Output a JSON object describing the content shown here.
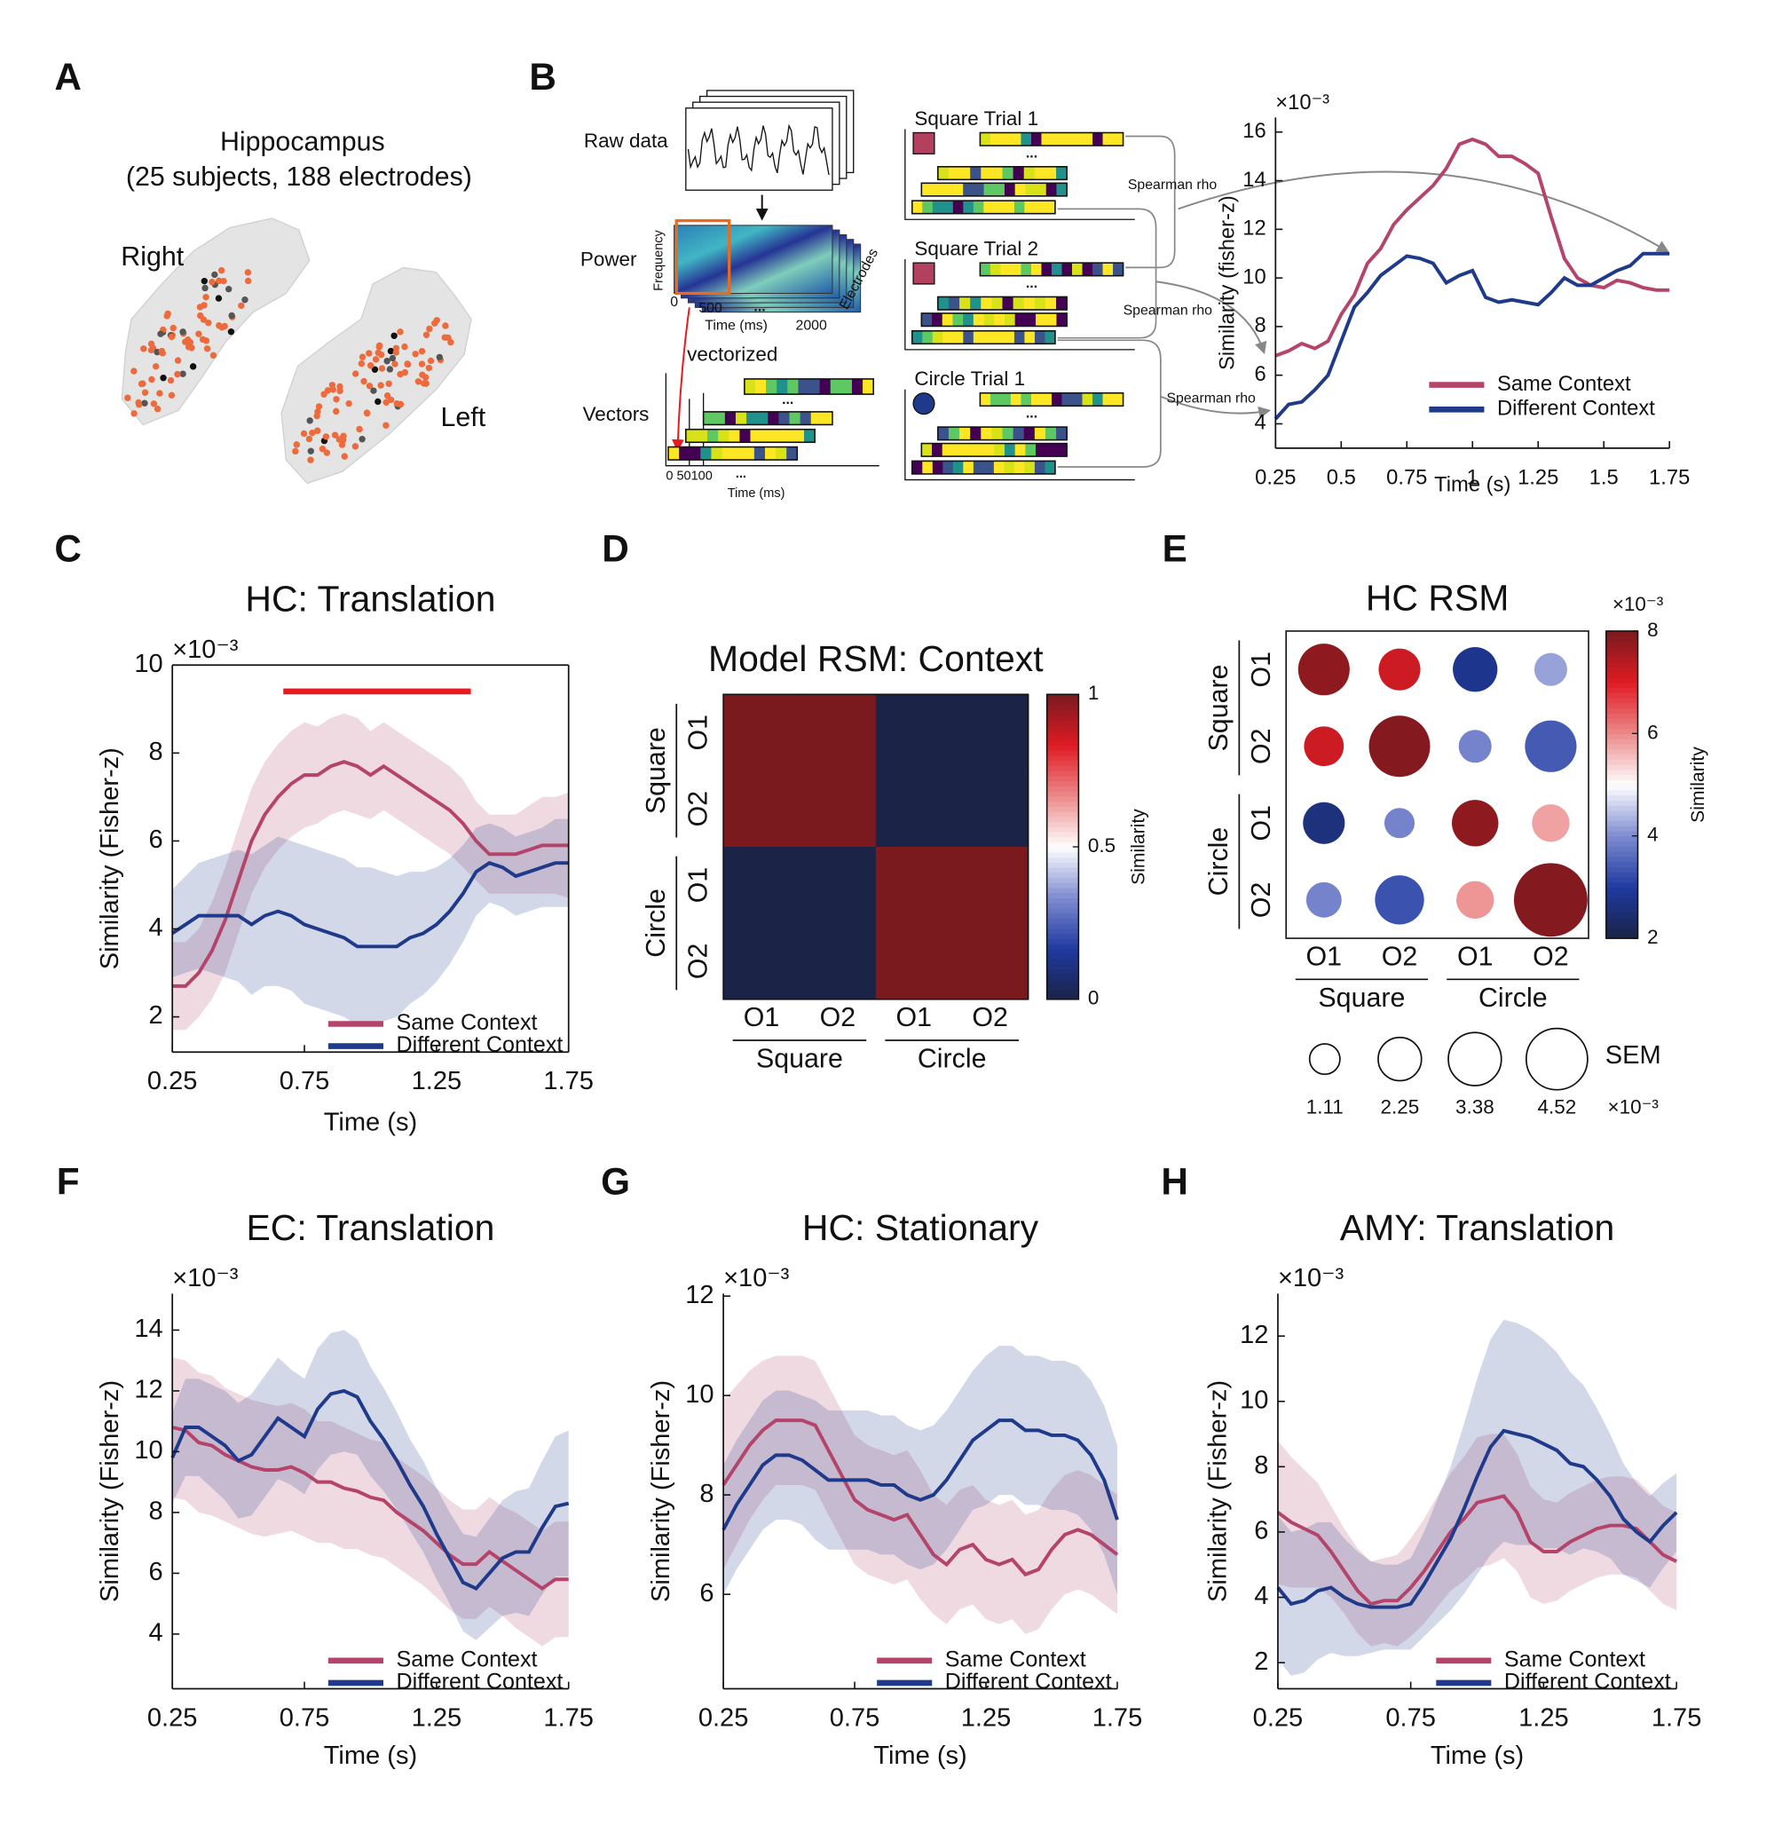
{
  "figure": {
    "panels": [
      "A",
      "B",
      "C",
      "D",
      "E",
      "F",
      "G",
      "H"
    ],
    "panel_a": {
      "title": "Hippocampus",
      "subtitle": "(25 subjects, 188 electrodes)",
      "right": "Right",
      "left": "Left"
    },
    "panel_b": {
      "raw": "Raw data",
      "power": "Power",
      "frequency": "Frequency",
      "power_ticks": [
        "0",
        "500",
        "2000"
      ],
      "time_label": "Time (ms)",
      "electrodes": "Electrodes",
      "vectorized": "vectorized",
      "vectors": "Vectors",
      "vector_ticks": "0 50100",
      "ellipsis": "...",
      "trials": [
        "Square Trial 1",
        "Square Trial 2",
        "Circle Trial 1"
      ],
      "spearman": "Spearman rho"
    }
  },
  "chart_data": [
    {
      "type": "line",
      "x": [
        0.25,
        0.3,
        0.35,
        0.4,
        0.45,
        0.5,
        0.55,
        0.6,
        0.65,
        0.7,
        0.75,
        0.8,
        0.85,
        0.9,
        0.95,
        1.0,
        1.05,
        1.1,
        1.15,
        1.2,
        1.25,
        1.3,
        1.35,
        1.4,
        1.45,
        1.5,
        1.55,
        1.6,
        1.65,
        1.7,
        1.75
      ],
      "xlim": [
        0.25,
        1.75
      ],
      "xticks": [
        0.25,
        0.5,
        0.75,
        1,
        1.25,
        1.5,
        1.75
      ],
      "ylim": [
        3,
        16.6
      ],
      "yticks": [
        4,
        6,
        8,
        10,
        12,
        14,
        16
      ],
      "xlabel": "Time (s)",
      "ylabel": "Similarity (fisher-z)",
      "y_multiplier": "×10⁻³",
      "legend": "lower right",
      "frame": false,
      "series": [
        {
          "name": "Same Context",
          "color": "#b5446a",
          "values": [
            6.8,
            7.0,
            7.3,
            7.1,
            7.4,
            8.5,
            9.3,
            10.6,
            11.2,
            12.2,
            12.8,
            13.3,
            13.8,
            14.5,
            15.5,
            15.7,
            15.5,
            15.0,
            15.0,
            14.7,
            14.3,
            12.5,
            10.8,
            10.0,
            9.7,
            9.6,
            9.9,
            9.8,
            9.6,
            9.5,
            9.5
          ]
        },
        {
          "name": "Different Context",
          "color": "#1f3a8a",
          "values": [
            4.2,
            4.8,
            4.9,
            5.4,
            6.0,
            7.4,
            8.8,
            9.4,
            10.1,
            10.5,
            10.9,
            10.8,
            10.6,
            9.8,
            10.1,
            10.3,
            9.2,
            9.0,
            9.1,
            9.0,
            8.9,
            9.4,
            10.0,
            9.7,
            9.7,
            10.0,
            10.3,
            10.5,
            11.0,
            11.0,
            11.0
          ]
        }
      ]
    },
    {
      "type": "line",
      "title": "HC: Translation",
      "x": [
        0.25,
        0.3,
        0.35,
        0.4,
        0.45,
        0.5,
        0.55,
        0.6,
        0.65,
        0.7,
        0.75,
        0.8,
        0.85,
        0.9,
        0.95,
        1.0,
        1.05,
        1.1,
        1.15,
        1.2,
        1.25,
        1.3,
        1.35,
        1.4,
        1.45,
        1.5,
        1.55,
        1.6,
        1.65,
        1.7,
        1.75
      ],
      "xlim": [
        0.25,
        1.75
      ],
      "xticks": [
        0.25,
        0.75,
        1.25,
        1.75
      ],
      "ylim": [
        1.2,
        10
      ],
      "yticks": [
        2,
        4,
        6,
        8,
        10
      ],
      "xlabel": "Time (s)",
      "ylabel": "Similarity (Fisher-z)",
      "y_multiplier": "×10⁻³",
      "legend": "lower right",
      "frame": true,
      "significance": {
        "x": [
          0.67,
          1.38
        ],
        "y": 9.4,
        "color": "#e8191f"
      },
      "series": [
        {
          "name": "Same Context",
          "color": "#b5446a",
          "values": [
            2.7,
            2.7,
            3.0,
            3.5,
            4.2,
            5.1,
            6.0,
            6.6,
            7.0,
            7.3,
            7.5,
            7.5,
            7.7,
            7.8,
            7.7,
            7.5,
            7.7,
            7.5,
            7.3,
            7.1,
            6.9,
            6.7,
            6.4,
            6.0,
            5.7,
            5.7,
            5.7,
            5.8,
            5.9,
            5.9,
            5.9
          ],
          "errors": [
            1.0,
            1.0,
            1.0,
            1.1,
            1.2,
            1.2,
            1.2,
            1.2,
            1.2,
            1.2,
            1.2,
            1.1,
            1.1,
            1.1,
            1.1,
            1.0,
            1.0,
            1.0,
            1.0,
            1.0,
            1.0,
            1.0,
            1.0,
            0.9,
            0.9,
            0.9,
            0.9,
            1.0,
            1.1,
            1.1,
            1.2
          ]
        },
        {
          "name": "Different Context",
          "color": "#1f3a8a",
          "values": [
            3.9,
            4.1,
            4.3,
            4.3,
            4.3,
            4.3,
            4.1,
            4.3,
            4.4,
            4.3,
            4.1,
            4.0,
            3.9,
            3.8,
            3.6,
            3.6,
            3.6,
            3.6,
            3.8,
            3.9,
            4.1,
            4.4,
            4.8,
            5.3,
            5.5,
            5.4,
            5.2,
            5.3,
            5.4,
            5.5,
            5.5
          ],
          "errors": [
            1.0,
            1.1,
            1.2,
            1.3,
            1.4,
            1.5,
            1.6,
            1.6,
            1.7,
            1.7,
            1.8,
            1.8,
            1.8,
            1.8,
            1.8,
            1.8,
            1.7,
            1.6,
            1.5,
            1.4,
            1.3,
            1.2,
            1.1,
            1.0,
            0.9,
            0.9,
            0.9,
            0.9,
            0.9,
            1.0,
            1.0
          ]
        }
      ]
    },
    {
      "type": "heatmap",
      "title": "Model RSM: Context",
      "row_labels": [
        "O1",
        "O2",
        "O1",
        "O2"
      ],
      "col_labels": [
        "O1",
        "O2",
        "O1",
        "O2"
      ],
      "row_groups": [
        "Square",
        "Circle"
      ],
      "col_groups": [
        "Square",
        "Circle"
      ],
      "values": [
        [
          1,
          1,
          0,
          0
        ],
        [
          1,
          1,
          0,
          0
        ],
        [
          0,
          0,
          1,
          1
        ],
        [
          0,
          0,
          1,
          1
        ]
      ],
      "clim": [
        0,
        1
      ],
      "cticks": [
        0,
        0.5,
        1
      ],
      "clabel": "Similarity",
      "colormap": [
        "#1b2346",
        "#1f3aa0",
        "#7d8bd0",
        "#ffffff",
        "#ec8a8a",
        "#e01b24",
        "#7a1a1f"
      ]
    },
    {
      "type": "bubble_matrix",
      "title": "HC RSM",
      "row_labels": [
        "O1",
        "O2",
        "O1",
        "O2"
      ],
      "col_labels": [
        "O1",
        "O2",
        "O1",
        "O2"
      ],
      "row_groups": [
        "Square",
        "Circle"
      ],
      "col_groups": [
        "Square",
        "Circle"
      ],
      "values": [
        [
          7.8,
          7.2,
          2.8,
          4.2
        ],
        [
          7.2,
          7.9,
          3.9,
          3.4
        ],
        [
          2.6,
          3.9,
          7.8,
          5.8
        ],
        [
          3.9,
          3.3,
          5.9,
          7.9
        ]
      ],
      "sizes": [
        [
          3.2,
          2.1,
          2.4,
          1.3
        ],
        [
          1.9,
          4.5,
          1.3,
          3.2
        ],
        [
          2.1,
          1.1,
          2.6,
          1.7
        ],
        [
          1.5,
          2.9,
          1.7,
          6.5
        ]
      ],
      "clim": [
        2,
        8
      ],
      "cticks": [
        2,
        4,
        6,
        8
      ],
      "clabel": "Similarity",
      "c_multiplier": "×10⁻³",
      "colormap": [
        "#1b2346",
        "#1f3aa0",
        "#7d8bd0",
        "#ffffff",
        "#ec8a8a",
        "#e01b24",
        "#7a1a1f"
      ],
      "size_legend": {
        "title": "SEM",
        "values": [
          1.11,
          2.25,
          3.38,
          4.52
        ],
        "multiplier": "×10⁻³"
      }
    },
    {
      "type": "line",
      "title": "EC: Translation",
      "x": [
        0.25,
        0.3,
        0.35,
        0.4,
        0.45,
        0.5,
        0.55,
        0.6,
        0.65,
        0.7,
        0.75,
        0.8,
        0.85,
        0.9,
        0.95,
        1.0,
        1.05,
        1.1,
        1.15,
        1.2,
        1.25,
        1.3,
        1.35,
        1.4,
        1.45,
        1.5,
        1.55,
        1.6,
        1.65,
        1.7,
        1.75
      ],
      "xlim": [
        0.25,
        1.75
      ],
      "xticks": [
        0.25,
        0.75,
        1.25,
        1.75
      ],
      "ylim": [
        2.2,
        15.2
      ],
      "yticks": [
        4,
        6,
        8,
        10,
        12,
        14
      ],
      "xlabel": "Time (s)",
      "ylabel": "Similarity (Fisher-z)",
      "y_multiplier": "×10⁻³",
      "legend": "lower right",
      "frame": false,
      "series": [
        {
          "name": "Same Context",
          "color": "#b5446a",
          "values": [
            10.8,
            10.7,
            10.3,
            10.2,
            9.9,
            9.7,
            9.5,
            9.4,
            9.4,
            9.5,
            9.3,
            9.0,
            9.0,
            8.8,
            8.7,
            8.5,
            8.4,
            8.0,
            7.7,
            7.4,
            7.0,
            6.6,
            6.3,
            6.3,
            6.7,
            6.4,
            6.1,
            5.8,
            5.5,
            5.8,
            5.8
          ],
          "errors": [
            2.3,
            2.3,
            2.3,
            2.3,
            2.2,
            2.2,
            2.2,
            2.2,
            2.1,
            2.1,
            2.1,
            2.0,
            2.0,
            2.0,
            1.9,
            1.9,
            1.9,
            1.8,
            1.8,
            1.8,
            1.8,
            1.8,
            1.8,
            1.8,
            1.8,
            1.8,
            1.9,
            1.9,
            1.9,
            1.9,
            1.9
          ]
        },
        {
          "name": "Different Context",
          "color": "#1f3a8a",
          "values": [
            9.8,
            10.8,
            10.8,
            10.5,
            10.2,
            9.7,
            9.9,
            10.5,
            11.1,
            10.8,
            10.5,
            11.4,
            11.9,
            12.0,
            11.8,
            11.0,
            10.4,
            9.7,
            8.9,
            8.2,
            7.3,
            6.5,
            5.7,
            5.5,
            6.0,
            6.5,
            6.7,
            6.7,
            7.5,
            8.2,
            8.3
          ],
          "errors": [
            1.5,
            1.6,
            1.6,
            1.7,
            1.8,
            1.9,
            2.0,
            2.0,
            2.0,
            1.9,
            1.9,
            2.0,
            2.0,
            2.0,
            1.9,
            1.8,
            1.7,
            1.6,
            1.5,
            1.5,
            1.5,
            1.5,
            1.6,
            1.7,
            1.8,
            1.9,
            2.0,
            2.1,
            2.2,
            2.3,
            2.4
          ]
        }
      ]
    },
    {
      "type": "line",
      "title": "HC: Stationary",
      "x": [
        0.25,
        0.3,
        0.35,
        0.4,
        0.45,
        0.5,
        0.55,
        0.6,
        0.65,
        0.7,
        0.75,
        0.8,
        0.85,
        0.9,
        0.95,
        1.0,
        1.05,
        1.1,
        1.15,
        1.2,
        1.25,
        1.3,
        1.35,
        1.4,
        1.45,
        1.5,
        1.55,
        1.6,
        1.65,
        1.7,
        1.75
      ],
      "xlim": [
        0.25,
        1.75
      ],
      "xticks": [
        0.25,
        0.75,
        1.25,
        1.75
      ],
      "ylim": [
        4.1,
        12.05
      ],
      "yticks": [
        6,
        8,
        10,
        12
      ],
      "xlabel": "Time (s)",
      "ylabel": "Similarity (Fisher-z)",
      "y_multiplier": "×10⁻³",
      "legend": "lower right",
      "frame": false,
      "series": [
        {
          "name": "Same Context",
          "color": "#b5446a",
          "values": [
            8.2,
            8.6,
            9.0,
            9.3,
            9.5,
            9.5,
            9.5,
            9.4,
            8.9,
            8.4,
            7.9,
            7.7,
            7.6,
            7.5,
            7.6,
            7.2,
            6.8,
            6.6,
            6.9,
            7.0,
            6.7,
            6.6,
            6.7,
            6.4,
            6.5,
            6.9,
            7.2,
            7.3,
            7.2,
            7.0,
            6.8
          ],
          "errors": [
            1.7,
            1.6,
            1.5,
            1.4,
            1.3,
            1.3,
            1.3,
            1.3,
            1.3,
            1.3,
            1.3,
            1.3,
            1.3,
            1.3,
            1.3,
            1.3,
            1.2,
            1.2,
            1.2,
            1.2,
            1.2,
            1.2,
            1.2,
            1.2,
            1.2,
            1.2,
            1.2,
            1.2,
            1.2,
            1.2,
            1.2
          ]
        },
        {
          "name": "Different Context",
          "color": "#1f3a8a",
          "values": [
            7.3,
            7.8,
            8.2,
            8.6,
            8.8,
            8.8,
            8.7,
            8.5,
            8.3,
            8.3,
            8.3,
            8.3,
            8.2,
            8.2,
            8.0,
            7.9,
            8.0,
            8.3,
            8.7,
            9.1,
            9.3,
            9.5,
            9.5,
            9.3,
            9.3,
            9.2,
            9.2,
            9.1,
            8.8,
            8.3,
            7.5
          ],
          "errors": [
            1.3,
            1.3,
            1.3,
            1.3,
            1.3,
            1.3,
            1.3,
            1.4,
            1.4,
            1.4,
            1.4,
            1.4,
            1.4,
            1.4,
            1.4,
            1.4,
            1.4,
            1.4,
            1.4,
            1.4,
            1.5,
            1.5,
            1.5,
            1.5,
            1.5,
            1.5,
            1.5,
            1.5,
            1.5,
            1.5,
            1.5
          ]
        }
      ]
    },
    {
      "type": "line",
      "title": "AMY: Translation",
      "x": [
        0.25,
        0.3,
        0.35,
        0.4,
        0.45,
        0.5,
        0.55,
        0.6,
        0.65,
        0.7,
        0.75,
        0.8,
        0.85,
        0.9,
        0.95,
        1.0,
        1.05,
        1.1,
        1.15,
        1.2,
        1.25,
        1.3,
        1.35,
        1.4,
        1.45,
        1.5,
        1.55,
        1.6,
        1.65,
        1.7,
        1.75
      ],
      "xlim": [
        0.25,
        1.75
      ],
      "xticks": [
        0.25,
        0.75,
        1.25,
        1.75
      ],
      "ylim": [
        1.2,
        13.3
      ],
      "yticks": [
        2,
        4,
        6,
        8,
        10,
        12
      ],
      "xlabel": "Time (s)",
      "ylabel": "Similarity (Fisher-z)",
      "y_multiplier": "×10⁻³",
      "legend": "lower right",
      "frame": false,
      "series": [
        {
          "name": "Same Context",
          "color": "#b5446a",
          "values": [
            6.6,
            6.3,
            6.1,
            5.9,
            5.4,
            4.8,
            4.2,
            3.8,
            3.9,
            3.9,
            4.3,
            4.8,
            5.4,
            6.0,
            6.4,
            6.9,
            7.0,
            7.1,
            6.6,
            5.7,
            5.4,
            5.4,
            5.7,
            5.9,
            6.1,
            6.2,
            6.2,
            6.1,
            5.7,
            5.3,
            5.1
          ],
          "errors": [
            2.2,
            2.0,
            1.8,
            1.6,
            1.4,
            1.3,
            1.3,
            1.3,
            1.3,
            1.4,
            1.5,
            1.6,
            1.7,
            1.8,
            1.9,
            2.0,
            2.0,
            1.9,
            1.8,
            1.7,
            1.6,
            1.5,
            1.5,
            1.5,
            1.5,
            1.5,
            1.5,
            1.5,
            1.5,
            1.5,
            1.5
          ]
        },
        {
          "name": "Different Context",
          "color": "#1f3a8a",
          "values": [
            4.3,
            3.8,
            3.9,
            4.2,
            4.3,
            4.0,
            3.8,
            3.7,
            3.7,
            3.7,
            3.8,
            4.4,
            5.1,
            5.8,
            6.7,
            7.7,
            8.6,
            9.1,
            9.0,
            8.9,
            8.7,
            8.5,
            8.1,
            8.0,
            7.6,
            7.1,
            6.4,
            6.0,
            5.7,
            6.2,
            6.6
          ],
          "errors": [
            2.2,
            2.2,
            2.2,
            2.1,
            2.0,
            1.8,
            1.6,
            1.4,
            1.3,
            1.3,
            1.4,
            1.6,
            1.9,
            2.2,
            2.6,
            3.0,
            3.3,
            3.4,
            3.4,
            3.3,
            3.2,
            3.0,
            2.8,
            2.5,
            2.2,
            1.9,
            1.7,
            1.5,
            1.4,
            1.3,
            1.2
          ]
        }
      ]
    }
  ]
}
